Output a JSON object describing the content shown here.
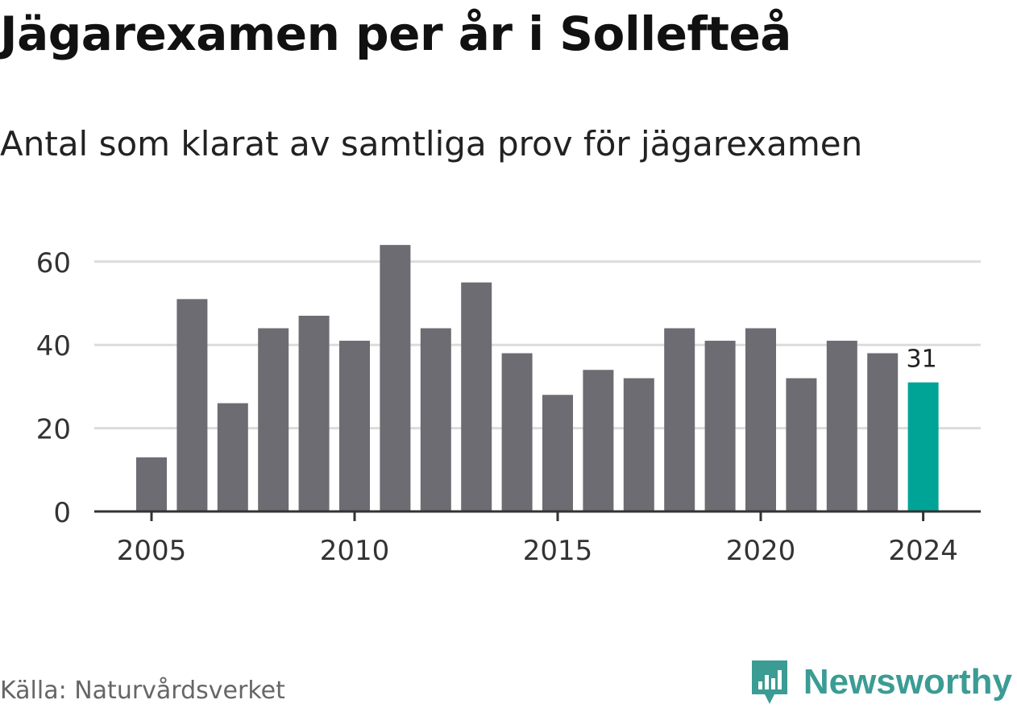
{
  "header": {
    "title": "Jägarexamen per år i Sollefteå",
    "subtitle": "Antal som klarat av samtliga prov för jägarexamen"
  },
  "footer": {
    "source": "Källa: Naturvårdsverket",
    "brand": "Newsworthy",
    "brand_icon": "bar-chart-flag-icon"
  },
  "colors": {
    "bar": "#6d6c72",
    "highlight": "#00a496",
    "grid": "#dcdcdc",
    "axis": "#333333",
    "brand": "#3b9c94"
  },
  "chart_data": {
    "type": "bar",
    "title": "",
    "xlabel": "",
    "ylabel": "",
    "x": [
      2005,
      2006,
      2007,
      2008,
      2009,
      2010,
      2011,
      2012,
      2013,
      2014,
      2015,
      2016,
      2017,
      2018,
      2019,
      2020,
      2021,
      2022,
      2023,
      2024
    ],
    "values": [
      13,
      51,
      26,
      44,
      47,
      41,
      64,
      44,
      55,
      38,
      28,
      34,
      32,
      44,
      41,
      44,
      32,
      41,
      38,
      31
    ],
    "ylim": [
      0,
      70
    ],
    "yticks": [
      0,
      20,
      40,
      60
    ],
    "xticks": [
      "2005",
      "2010",
      "2015",
      "2020",
      "2024"
    ],
    "highlight": {
      "x": 2024,
      "label": "31"
    },
    "grid": true,
    "legend": "none"
  }
}
